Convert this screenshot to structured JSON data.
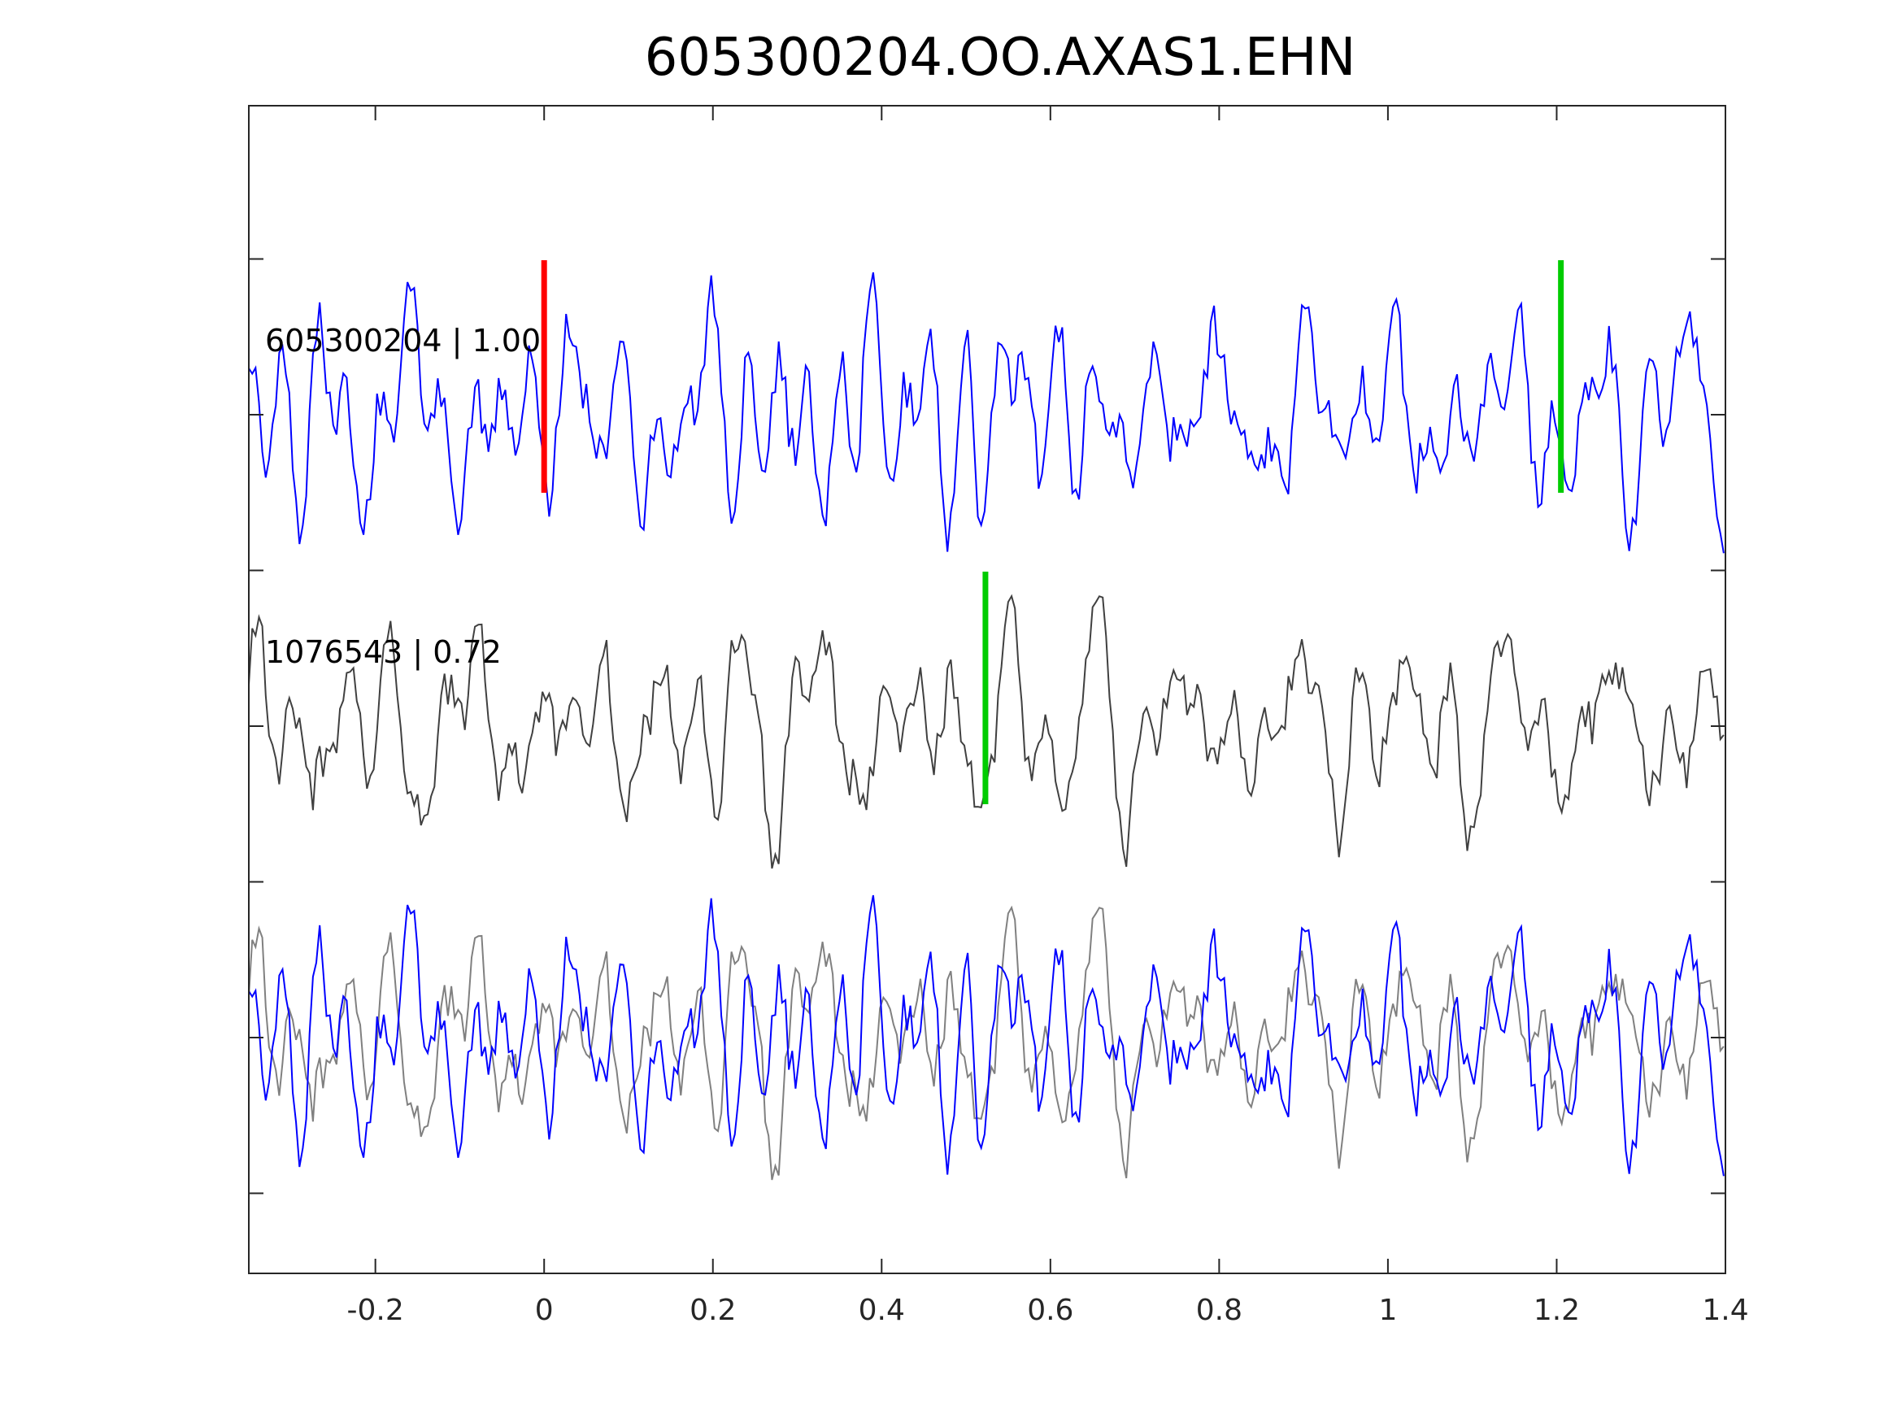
{
  "chart_data": {
    "type": "line",
    "title": "605300204.OO.AXAS1.EHN",
    "xlabel": "",
    "ylabel": "",
    "xlim": [
      -0.35,
      1.4
    ],
    "x_ticks": [
      -0.2,
      0,
      0.2,
      0.4,
      0.6,
      0.8,
      1,
      1.2,
      1.4
    ],
    "x_tick_labels": [
      "-0.2",
      "0",
      "0.2",
      "0.4",
      "0.6",
      "0.8",
      "1",
      "1.2",
      "1.4"
    ],
    "grid": false,
    "traces": [
      {
        "label": "605300204 | 1.00",
        "color": "#0000ff",
        "offset": 0,
        "markers": [
          {
            "x": 0.0,
            "color": "#ff0000"
          },
          {
            "x": 1.205,
            "color": "#00cc00"
          }
        ]
      },
      {
        "label": "1076543 | 0.72",
        "color": "#404040",
        "offset": -1,
        "markers": [
          {
            "x": 0.523,
            "color": "#00cc00"
          }
        ]
      }
    ],
    "overlay": {
      "offset": -2,
      "series_colors": [
        "#808080",
        "#0000ff"
      ]
    },
    "sample_interval": 0.004
  }
}
